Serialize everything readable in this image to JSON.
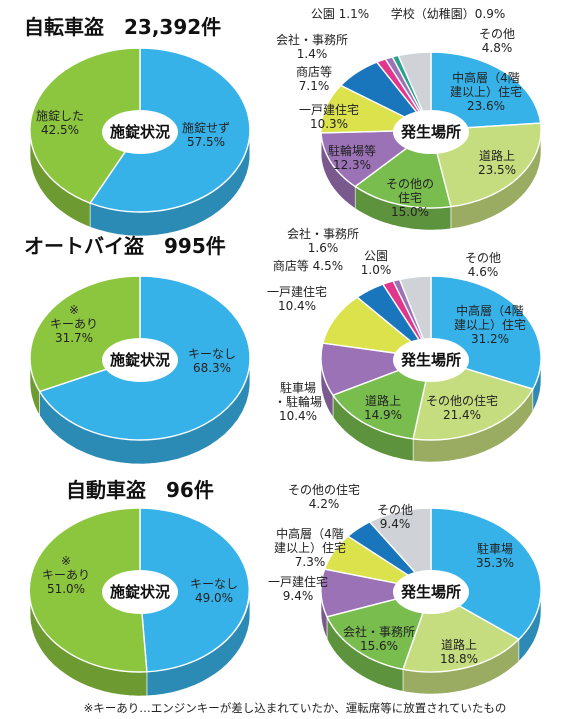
{
  "footnote": "※キーあり…エンジンキーが差し込まれていたか、運転席等に放置されていたもの",
  "colors": {
    "blue": "#37b2e8",
    "green": "#8cc63f",
    "light_green": "#c5dd7e",
    "mid_green": "#79bd4f",
    "purple": "#9c72b6",
    "yellow": "#dbe24c",
    "dark_blue": "#1976bd",
    "pink": "#e2358c",
    "gray": "#cfd2d6",
    "teal": "#2aa28e"
  },
  "chart_data": [
    {
      "section": "bicycle",
      "title": "自転車盗　23,392件",
      "charts": [
        {
          "type": "pie",
          "center_label": "施錠状況",
          "slices": [
            {
              "label": [
                "施錠せず",
                "57.5%"
              ],
              "value": 57.5,
              "color": "blue"
            },
            {
              "label": [
                "施錠した",
                "42.5%"
              ],
              "value": 42.5,
              "color": "green"
            }
          ]
        },
        {
          "type": "pie",
          "center_label": "発生場所",
          "slices": [
            {
              "label": [
                "中高層（4階",
                "建以上）住宅",
                "23.6%"
              ],
              "value": 23.6,
              "color": "blue"
            },
            {
              "label": [
                "道路上",
                "23.5%"
              ],
              "value": 23.5,
              "color": "light_green"
            },
            {
              "label": [
                "その他の",
                "住宅",
                "15.0%"
              ],
              "value": 15.0,
              "color": "mid_green"
            },
            {
              "label": [
                "駐輪場等",
                "12.3%"
              ],
              "value": 12.3,
              "color": "purple"
            },
            {
              "label": [
                "一戸建住宅",
                "10.3%"
              ],
              "value": 10.3,
              "color": "yellow"
            },
            {
              "label": [
                "商店等",
                "7.1%"
              ],
              "value": 7.1,
              "color": "dark_blue"
            },
            {
              "label": [
                "会社・事務所",
                "1.4%"
              ],
              "value": 1.4,
              "color": "pink"
            },
            {
              "label": [
                "公園 1.1%"
              ],
              "value": 1.1,
              "color": "purple"
            },
            {
              "label": [
                "学校（幼稚園）0.9%"
              ],
              "value": 0.9,
              "color": "teal"
            },
            {
              "label": [
                "その他",
                "4.8%"
              ],
              "value": 4.8,
              "color": "gray"
            }
          ]
        }
      ]
    },
    {
      "section": "motorcycle",
      "title": "オートバイ盗　995件",
      "charts": [
        {
          "type": "pie",
          "center_label": "施錠状況",
          "slices": [
            {
              "label": [
                "キーなし",
                "68.3%"
              ],
              "value": 68.3,
              "color": "blue"
            },
            {
              "label": [
                "※",
                "キーあり",
                "31.7%"
              ],
              "value": 31.7,
              "color": "green"
            }
          ]
        },
        {
          "type": "pie",
          "center_label": "発生場所",
          "slices": [
            {
              "label": [
                "中高層（4階",
                "建以上）住宅",
                "31.2%"
              ],
              "value": 31.2,
              "color": "blue"
            },
            {
              "label": [
                "その他の住宅",
                "21.4%"
              ],
              "value": 21.4,
              "color": "light_green"
            },
            {
              "label": [
                "道路上",
                "14.9%"
              ],
              "value": 14.9,
              "color": "mid_green"
            },
            {
              "label": [
                "駐車場",
                "・駐輪場",
                "10.4%"
              ],
              "value": 10.4,
              "color": "purple"
            },
            {
              "label": [
                "一戸建住宅",
                "10.4%"
              ],
              "value": 10.4,
              "color": "yellow"
            },
            {
              "label": [
                "商店等 4.5%"
              ],
              "value": 4.5,
              "color": "dark_blue"
            },
            {
              "label": [
                "会社・事務所",
                "1.6%"
              ],
              "value": 1.6,
              "color": "pink"
            },
            {
              "label": [
                "公園",
                "1.0%"
              ],
              "value": 1.0,
              "color": "purple"
            },
            {
              "label": [
                "その他",
                "4.6%"
              ],
              "value": 4.6,
              "color": "gray"
            }
          ]
        }
      ]
    },
    {
      "section": "car",
      "title": "自動車盗　96件",
      "charts": [
        {
          "type": "pie",
          "center_label": "施錠状況",
          "slices": [
            {
              "label": [
                "キーなし",
                "49.0%"
              ],
              "value": 49.0,
              "color": "blue"
            },
            {
              "label": [
                "※",
                "キーあり",
                "51.0%"
              ],
              "value": 51.0,
              "color": "green"
            }
          ]
        },
        {
          "type": "pie",
          "center_label": "発生場所",
          "slices": [
            {
              "label": [
                "駐車場",
                "35.3%"
              ],
              "value": 35.3,
              "color": "blue"
            },
            {
              "label": [
                "道路上",
                "18.8%"
              ],
              "value": 18.8,
              "color": "light_green"
            },
            {
              "label": [
                "会社・事務所",
                "15.6%"
              ],
              "value": 15.6,
              "color": "mid_green"
            },
            {
              "label": [
                "一戸建住宅",
                "9.4%"
              ],
              "value": 9.4,
              "color": "purple"
            },
            {
              "label": [
                "中高層（4階",
                "建以上）住宅",
                "7.3%"
              ],
              "value": 7.3,
              "color": "yellow"
            },
            {
              "label": [
                "その他の住宅",
                "4.2%"
              ],
              "value": 4.2,
              "color": "dark_blue"
            },
            {
              "label": [
                "その他",
                "9.4%"
              ],
              "value": 9.4,
              "color": "gray"
            }
          ]
        }
      ]
    }
  ]
}
